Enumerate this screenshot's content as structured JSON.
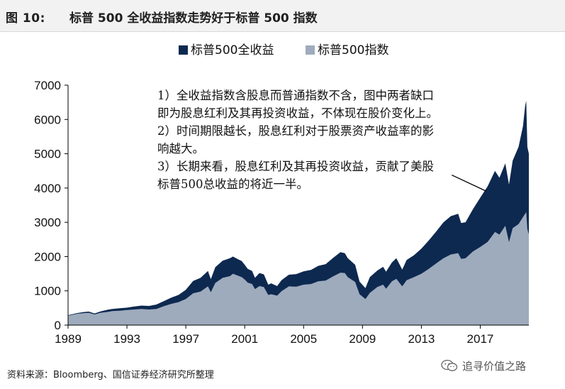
{
  "figure": {
    "label": "图 10:",
    "title": "标普 500 全收益指数走势好于标普 500 指数"
  },
  "footer": {
    "source": "资料来源：Bloomberg、国信证券经济研究所整理"
  },
  "watermark": {
    "text": "追寻价值之路",
    "icon": "wechat-icon"
  },
  "annotation": {
    "lines": [
      "1）全收益指数含股息而普通指数不含，图中两者缺口即为股息红利及其再投资收益，不体现在股价变化上。",
      "2）时间期限越长，股息红利对于股票资产收益率的影响越大。",
      "3）长期来看，股息红利及其再投资收益，贡献了美股标普500总收益的将近一半。"
    ]
  },
  "colors": {
    "total_return": "#0d2950",
    "price_index": "#9eabbd",
    "axis": "#000000"
  },
  "chart_data": {
    "type": "area",
    "title": "标普 500 全收益指数走势好于标普 500 指数",
    "xlabel": "",
    "ylabel": "",
    "ylim": [
      0,
      7000
    ],
    "xlim": [
      1989,
      2020.3
    ],
    "yticks": [
      0,
      1000,
      2000,
      3000,
      4000,
      5000,
      6000,
      7000
    ],
    "xticks": [
      1989,
      1993,
      1997,
      2001,
      2005,
      2009,
      2013,
      2017
    ],
    "legend": {
      "position": "top-center",
      "entries": [
        "标普500全收益",
        "标普500指数"
      ]
    },
    "series": [
      {
        "name": "标普500全收益",
        "color": "#0d2950",
        "points": [
          [
            1989.0,
            290
          ],
          [
            1989.6,
            350
          ],
          [
            1990.0,
            380
          ],
          [
            1990.4,
            395
          ],
          [
            1990.8,
            340
          ],
          [
            1991.2,
            400
          ],
          [
            1991.7,
            450
          ],
          [
            1992.0,
            470
          ],
          [
            1992.5,
            490
          ],
          [
            1993.0,
            510
          ],
          [
            1993.5,
            545
          ],
          [
            1994.0,
            570
          ],
          [
            1994.5,
            560
          ],
          [
            1995.0,
            600
          ],
          [
            1995.5,
            700
          ],
          [
            1996.0,
            800
          ],
          [
            1996.5,
            880
          ],
          [
            1997.0,
            1030
          ],
          [
            1997.5,
            1290
          ],
          [
            1998.0,
            1380
          ],
          [
            1998.5,
            1580
          ],
          [
            1998.7,
            1340
          ],
          [
            1999.0,
            1690
          ],
          [
            1999.5,
            1880
          ],
          [
            2000.0,
            1950
          ],
          [
            2000.2,
            2000
          ],
          [
            2000.5,
            1930
          ],
          [
            2000.8,
            1870
          ],
          [
            2001.0,
            1760
          ],
          [
            2001.2,
            1640
          ],
          [
            2001.5,
            1580
          ],
          [
            2001.7,
            1380
          ],
          [
            2002.0,
            1520
          ],
          [
            2002.3,
            1480
          ],
          [
            2002.6,
            1180
          ],
          [
            2002.8,
            1220
          ],
          [
            2003.2,
            1140
          ],
          [
            2003.5,
            1310
          ],
          [
            2004.0,
            1470
          ],
          [
            2004.5,
            1490
          ],
          [
            2005.0,
            1570
          ],
          [
            2005.5,
            1610
          ],
          [
            2006.0,
            1730
          ],
          [
            2006.5,
            1780
          ],
          [
            2007.0,
            1960
          ],
          [
            2007.5,
            2130
          ],
          [
            2007.8,
            2100
          ],
          [
            2008.0,
            1950
          ],
          [
            2008.5,
            1760
          ],
          [
            2008.8,
            1270
          ],
          [
            2009.2,
            1080
          ],
          [
            2009.5,
            1400
          ],
          [
            2010.0,
            1590
          ],
          [
            2010.4,
            1700
          ],
          [
            2010.6,
            1560
          ],
          [
            2011.0,
            1830
          ],
          [
            2011.3,
            1950
          ],
          [
            2011.7,
            1620
          ],
          [
            2012.0,
            1900
          ],
          [
            2012.5,
            2040
          ],
          [
            2013.0,
            2230
          ],
          [
            2013.5,
            2470
          ],
          [
            2014.0,
            2730
          ],
          [
            2014.5,
            3000
          ],
          [
            2015.0,
            3180
          ],
          [
            2015.5,
            3250
          ],
          [
            2015.7,
            2980
          ],
          [
            2016.0,
            3000
          ],
          [
            2016.5,
            3380
          ],
          [
            2017.0,
            3720
          ],
          [
            2017.5,
            4050
          ],
          [
            2018.0,
            4500
          ],
          [
            2018.3,
            4300
          ],
          [
            2018.7,
            4720
          ],
          [
            2018.95,
            4100
          ],
          [
            2019.2,
            4800
          ],
          [
            2019.6,
            5200
          ],
          [
            2019.9,
            5800
          ],
          [
            2020.05,
            6400
          ],
          [
            2020.12,
            6550
          ],
          [
            2020.2,
            5200
          ],
          [
            2020.3,
            5000
          ]
        ]
      },
      {
        "name": "标普500指数",
        "color": "#9eabbd",
        "points": [
          [
            1989.0,
            275
          ],
          [
            1989.6,
            330
          ],
          [
            1990.0,
            345
          ],
          [
            1990.4,
            360
          ],
          [
            1990.8,
            310
          ],
          [
            1991.2,
            360
          ],
          [
            1991.7,
            385
          ],
          [
            1992.0,
            410
          ],
          [
            1992.5,
            420
          ],
          [
            1993.0,
            440
          ],
          [
            1993.5,
            455
          ],
          [
            1994.0,
            470
          ],
          [
            1994.5,
            455
          ],
          [
            1995.0,
            470
          ],
          [
            1995.5,
            550
          ],
          [
            1996.0,
            620
          ],
          [
            1996.5,
            670
          ],
          [
            1997.0,
            760
          ],
          [
            1997.5,
            930
          ],
          [
            1998.0,
            980
          ],
          [
            1998.5,
            1130
          ],
          [
            1998.7,
            960
          ],
          [
            1999.0,
            1230
          ],
          [
            1999.5,
            1380
          ],
          [
            2000.0,
            1430
          ],
          [
            2000.2,
            1500
          ],
          [
            2000.5,
            1450
          ],
          [
            2000.8,
            1400
          ],
          [
            2001.0,
            1330
          ],
          [
            2001.2,
            1240
          ],
          [
            2001.5,
            1200
          ],
          [
            2001.7,
            1050
          ],
          [
            2002.0,
            1140
          ],
          [
            2002.3,
            1110
          ],
          [
            2002.6,
            880
          ],
          [
            2002.8,
            900
          ],
          [
            2003.2,
            860
          ],
          [
            2003.5,
            990
          ],
          [
            2004.0,
            1130
          ],
          [
            2004.5,
            1120
          ],
          [
            2005.0,
            1180
          ],
          [
            2005.5,
            1200
          ],
          [
            2006.0,
            1280
          ],
          [
            2006.5,
            1300
          ],
          [
            2007.0,
            1420
          ],
          [
            2007.5,
            1530
          ],
          [
            2007.8,
            1520
          ],
          [
            2008.0,
            1400
          ],
          [
            2008.5,
            1260
          ],
          [
            2008.8,
            900
          ],
          [
            2009.2,
            760
          ],
          [
            2009.5,
            940
          ],
          [
            2010.0,
            1110
          ],
          [
            2010.4,
            1180
          ],
          [
            2010.6,
            1060
          ],
          [
            2011.0,
            1280
          ],
          [
            2011.3,
            1350
          ],
          [
            2011.7,
            1130
          ],
          [
            2012.0,
            1310
          ],
          [
            2012.5,
            1400
          ],
          [
            2013.0,
            1500
          ],
          [
            2013.5,
            1640
          ],
          [
            2014.0,
            1800
          ],
          [
            2014.5,
            1950
          ],
          [
            2015.0,
            2060
          ],
          [
            2015.5,
            2100
          ],
          [
            2015.7,
            1930
          ],
          [
            2016.0,
            1950
          ],
          [
            2016.5,
            2150
          ],
          [
            2017.0,
            2280
          ],
          [
            2017.5,
            2430
          ],
          [
            2018.0,
            2720
          ],
          [
            2018.3,
            2640
          ],
          [
            2018.7,
            2900
          ],
          [
            2018.95,
            2420
          ],
          [
            2019.2,
            2830
          ],
          [
            2019.6,
            2950
          ],
          [
            2019.9,
            3150
          ],
          [
            2020.05,
            3250
          ],
          [
            2020.12,
            3300
          ],
          [
            2020.2,
            2800
          ],
          [
            2020.3,
            2650
          ]
        ]
      }
    ],
    "annotation_arrow": {
      "from": [
        2014.1,
        4400
      ],
      "to": [
        2017.4,
        3950
      ]
    }
  }
}
